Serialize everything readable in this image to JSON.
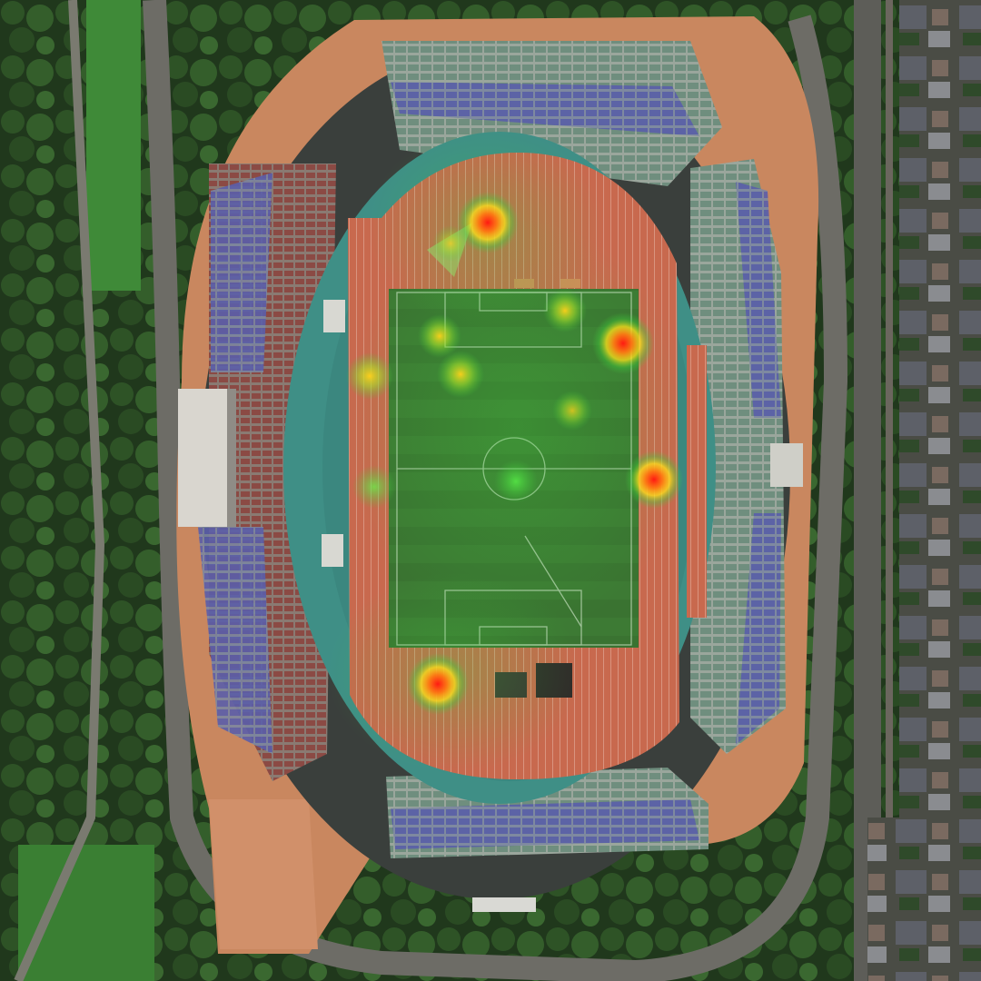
{
  "scene": {
    "description_visible_text": [],
    "heat_spots": [
      {
        "id": "spot-1",
        "intensity": "high"
      },
      {
        "id": "spot-2",
        "intensity": "high"
      },
      {
        "id": "spot-3",
        "intensity": "high"
      },
      {
        "id": "spot-4",
        "intensity": "high"
      },
      {
        "id": "spot-5",
        "intensity": "medium"
      },
      {
        "id": "spot-6",
        "intensity": "medium"
      },
      {
        "id": "spot-7",
        "intensity": "medium"
      },
      {
        "id": "spot-8",
        "intensity": "medium"
      },
      {
        "id": "spot-9",
        "intensity": "low"
      },
      {
        "id": "spot-10",
        "intensity": "low"
      },
      {
        "id": "spot-11",
        "intensity": "low"
      },
      {
        "id": "spot-12",
        "intensity": "low"
      }
    ],
    "colors": {
      "grass": "#3f7a35",
      "track": "#c9694f",
      "apron": "#3f8f86",
      "seats_blue": "#5b5fa8",
      "seats_green": "#6f8f7f",
      "concourse": "#c8875e",
      "road": "#6b6b66",
      "trees": "#23401f",
      "heat_hot": "#ff2a1a",
      "heat_warm": "#ffd21a",
      "heat_cool": "#2fcf3a"
    }
  }
}
